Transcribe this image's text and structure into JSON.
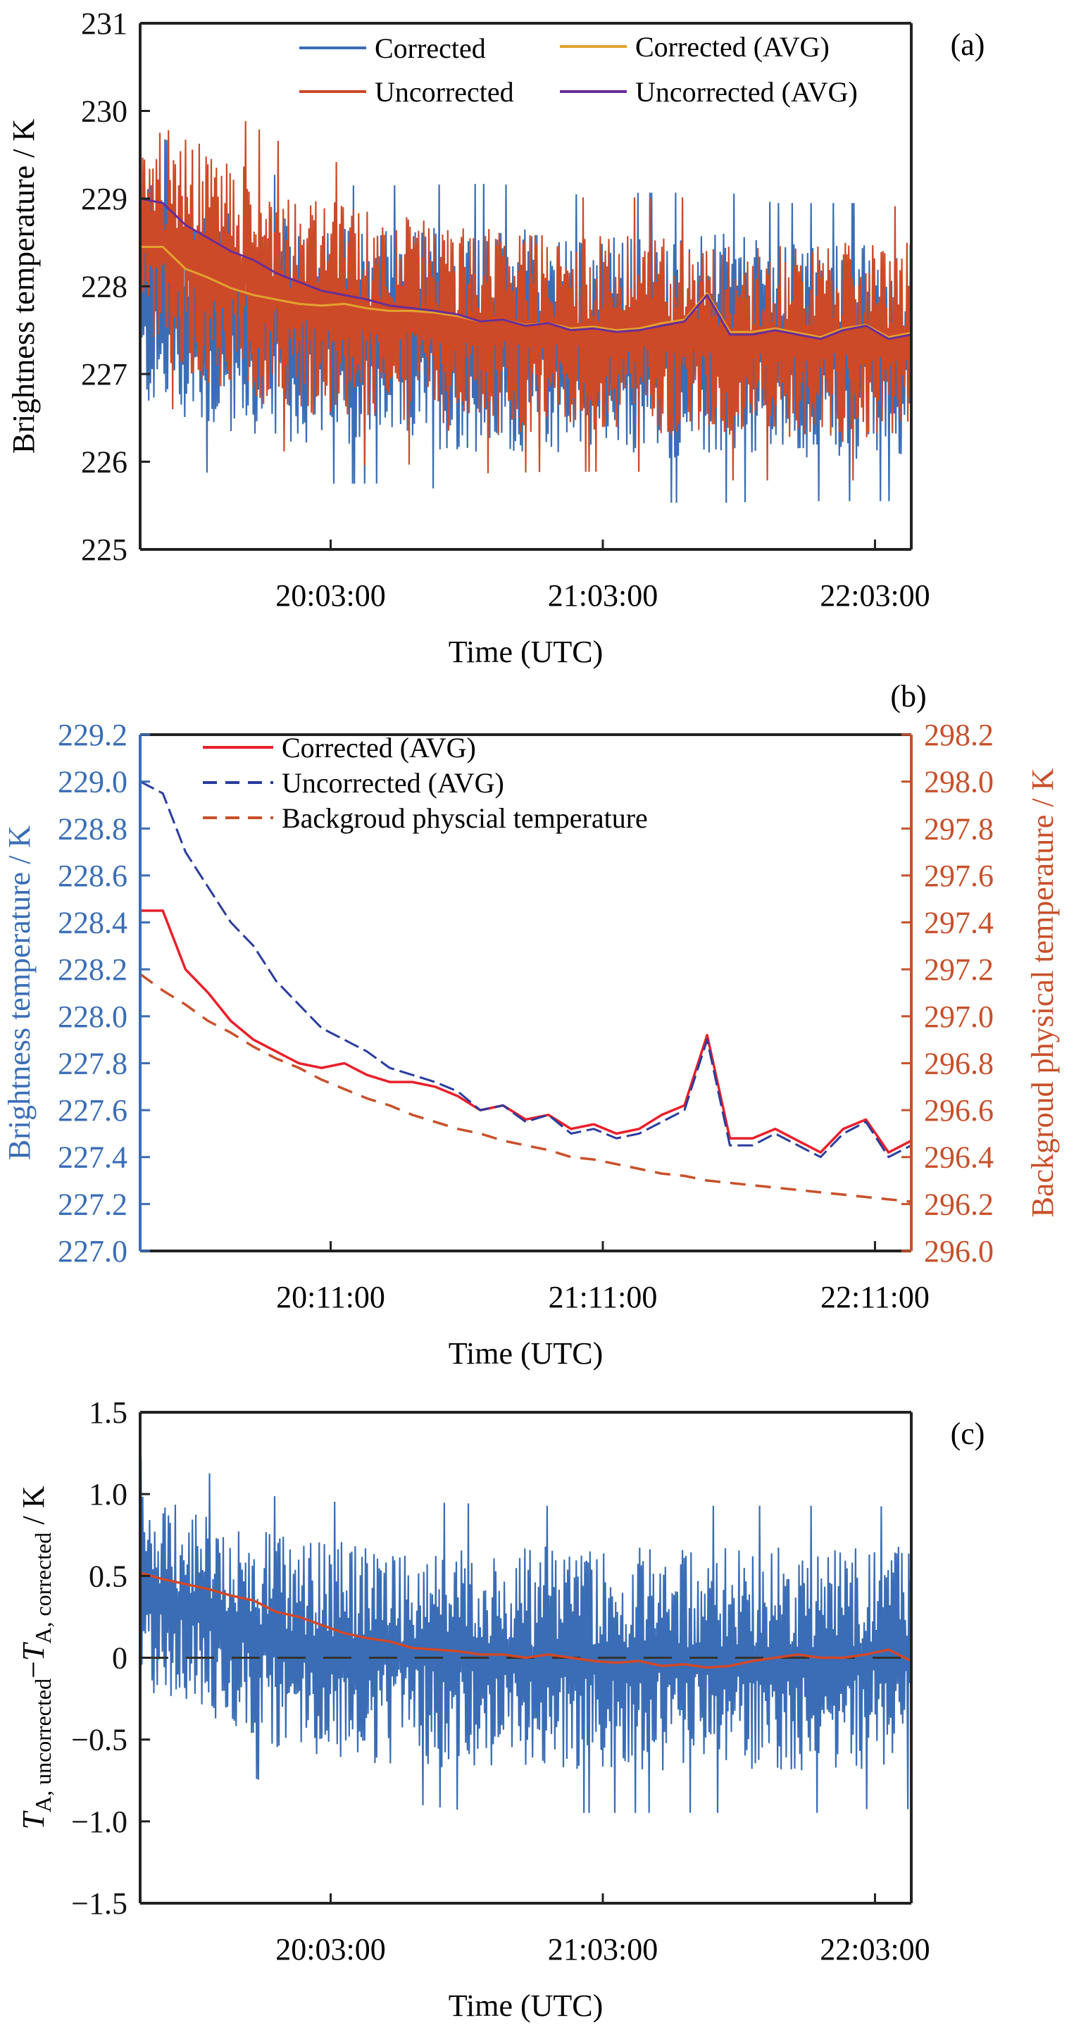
{
  "chart_data": [
    {
      "panel": "(a)",
      "type": "line",
      "xlabel": "Time (UTC)",
      "ylabel": "Brightness temperature / K",
      "xlim": [
        "19:21",
        "22:11"
      ],
      "ylim": [
        225,
        231
      ],
      "yticks": [
        "225",
        "226",
        "227",
        "228",
        "229",
        "230",
        "231"
      ],
      "xticks": [
        {
          "t": "20:03",
          "label": "20:03:00"
        },
        {
          "t": "21:03",
          "label": "21:03:00"
        },
        {
          "t": "22:03",
          "label": "22:03:00"
        }
      ],
      "legend": [
        "Corrected",
        "Uncorrected",
        "Corrected (AVG)",
        "Uncorrected (AVG)"
      ],
      "legend_placement": "top",
      "colors": {
        "Corrected": "#3a6db5",
        "Uncorrected": "#cc4a28",
        "Corrected (AVG)": "#e3a12f",
        "Uncorrected (AVG)": "#6b2d96"
      },
      "raw_series": {
        "times": [
          "19:21",
          "19:31",
          "19:41",
          "19:51",
          "20:01",
          "20:11",
          "20:21",
          "20:31",
          "20:41",
          "20:51",
          "21:01",
          "21:11",
          "21:21",
          "21:31",
          "21:41",
          "21:51",
          "22:01",
          "22:11"
        ],
        "Corrected": {
          "hi": [
            229.3,
            229.1,
            228.9,
            228.8,
            228.7,
            228.7,
            228.7,
            228.7,
            228.7,
            228.6,
            228.6,
            228.6,
            228.6,
            228.6,
            228.5,
            228.5,
            228.5,
            228.5
          ],
          "lo": [
            226.6,
            226.4,
            226.3,
            226.2,
            226.2,
            226.2,
            226.2,
            226.1,
            226.1,
            226.1,
            226.1,
            226.0,
            226.0,
            226.0,
            226.0,
            226.0,
            226.0,
            226.0
          ]
        },
        "Uncorrected": {
          "hi": [
            230.0,
            229.7,
            229.5,
            229.2,
            229.0,
            228.9,
            228.8,
            228.7,
            228.7,
            228.6,
            228.6,
            228.6,
            228.6,
            228.5,
            228.5,
            228.5,
            228.5,
            228.5
          ],
          "lo": [
            227.3,
            227.0,
            226.8,
            226.6,
            226.5,
            226.4,
            226.4,
            226.3,
            226.3,
            226.3,
            226.3,
            226.3,
            226.3,
            226.2,
            226.2,
            226.2,
            226.2,
            226.2
          ]
        }
      },
      "avg_series": {
        "times": [
          "19:21",
          "19:26",
          "19:31",
          "19:36",
          "19:41",
          "19:46",
          "19:51",
          "19:56",
          "20:01",
          "20:06",
          "20:11",
          "20:16",
          "20:21",
          "20:26",
          "20:31",
          "20:36",
          "20:41",
          "20:46",
          "20:51",
          "20:56",
          "21:01",
          "21:06",
          "21:11",
          "21:16",
          "21:21",
          "21:26",
          "21:31",
          "21:36",
          "21:41",
          "21:46",
          "21:51",
          "21:56",
          "22:01",
          "22:06",
          "22:11"
        ],
        "Corrected (AVG)": [
          228.45,
          228.45,
          228.2,
          228.1,
          227.98,
          227.9,
          227.85,
          227.8,
          227.78,
          227.8,
          227.75,
          227.72,
          227.72,
          227.7,
          227.66,
          227.6,
          227.62,
          227.56,
          227.58,
          227.52,
          227.54,
          227.5,
          227.52,
          227.58,
          227.62,
          227.92,
          227.48,
          227.48,
          227.52,
          227.47,
          227.42,
          227.52,
          227.56,
          227.42,
          227.47
        ],
        "Uncorrected (AVG)": [
          229.0,
          228.95,
          228.7,
          228.55,
          228.4,
          228.3,
          228.15,
          228.05,
          227.95,
          227.9,
          227.85,
          227.78,
          227.75,
          227.72,
          227.68,
          227.6,
          227.62,
          227.55,
          227.58,
          227.5,
          227.52,
          227.48,
          227.5,
          227.55,
          227.6,
          227.9,
          227.45,
          227.45,
          227.5,
          227.45,
          227.4,
          227.5,
          227.55,
          227.4,
          227.45
        ]
      }
    },
    {
      "panel": "(b)",
      "type": "line",
      "xlabel": "Time (UTC)",
      "ylabel": "Brightness temperature / K",
      "y2label": "Backgroud physical temperature / K",
      "xlim": [
        "19:29",
        "22:19"
      ],
      "ylim": [
        227.0,
        229.2
      ],
      "y2lim": [
        296.0,
        298.2
      ],
      "yticks": [
        "227.0",
        "227.2",
        "227.4",
        "227.6",
        "227.8",
        "228.0",
        "228.2",
        "228.4",
        "228.6",
        "228.8",
        "229.0",
        "229.2"
      ],
      "y2ticks": [
        "296.0",
        "296.2",
        "296.4",
        "296.6",
        "296.8",
        "297.0",
        "297.2",
        "297.4",
        "297.6",
        "297.8",
        "298.0",
        "298.2"
      ],
      "xticks": [
        {
          "t": "20:11",
          "label": "20:11:00"
        },
        {
          "t": "21:11",
          "label": "21:11:00"
        },
        {
          "t": "22:11",
          "label": "22:11:00"
        }
      ],
      "legend": [
        "Corrected (AVG)",
        "Uncorrected (AVG)",
        "Backgroud physcial temperature"
      ],
      "legend_placement": "top-left",
      "colors": {
        "left_axis": "#3a6db5",
        "right_axis": "#c8502a",
        "Corrected (AVG)": "#e8202a",
        "Uncorrected (AVG)": "#2a3c9e",
        "Backgroud physcial temperature": "#c8502a"
      },
      "times": [
        "19:29",
        "19:34",
        "19:39",
        "19:44",
        "19:49",
        "19:54",
        "19:59",
        "20:04",
        "20:09",
        "20:14",
        "20:19",
        "20:24",
        "20:29",
        "20:34",
        "20:39",
        "20:44",
        "20:49",
        "20:54",
        "20:59",
        "21:04",
        "21:09",
        "21:14",
        "21:19",
        "21:24",
        "21:29",
        "21:34",
        "21:39",
        "21:44",
        "21:49",
        "21:54",
        "21:59",
        "22:04",
        "22:09",
        "22:14",
        "22:19"
      ],
      "Corrected (AVG)": [
        228.45,
        228.45,
        228.2,
        228.1,
        227.98,
        227.9,
        227.85,
        227.8,
        227.78,
        227.8,
        227.75,
        227.72,
        227.72,
        227.7,
        227.66,
        227.6,
        227.62,
        227.56,
        227.58,
        227.52,
        227.54,
        227.5,
        227.52,
        227.58,
        227.62,
        227.92,
        227.48,
        227.48,
        227.52,
        227.47,
        227.42,
        227.52,
        227.56,
        227.42,
        227.47
      ],
      "Uncorrected (AVG)": [
        229.0,
        228.95,
        228.7,
        228.55,
        228.4,
        228.3,
        228.15,
        228.05,
        227.95,
        227.9,
        227.85,
        227.78,
        227.75,
        227.72,
        227.68,
        227.6,
        227.62,
        227.55,
        227.58,
        227.5,
        227.52,
        227.48,
        227.5,
        227.55,
        227.6,
        227.9,
        227.45,
        227.45,
        227.5,
        227.45,
        227.4,
        227.5,
        227.55,
        227.4,
        227.45
      ],
      "Backgroud physcial temperature": [
        297.18,
        297.11,
        297.05,
        296.98,
        296.93,
        296.87,
        296.82,
        296.78,
        296.73,
        296.69,
        296.65,
        296.62,
        296.58,
        296.55,
        296.52,
        296.5,
        296.47,
        296.45,
        296.43,
        296.4,
        296.39,
        296.37,
        296.35,
        296.33,
        296.32,
        296.3,
        296.29,
        296.28,
        296.27,
        296.26,
        296.25,
        296.24,
        296.23,
        296.22,
        296.21
      ]
    },
    {
      "panel": "(c)",
      "type": "line",
      "xlabel": "Time (UTC)",
      "ylabel_parts": [
        "T",
        "A, uncorrected",
        "−",
        "T",
        "A, corrected",
        " / K"
      ],
      "xlim": [
        "19:21",
        "22:11"
      ],
      "ylim": [
        -1.5,
        1.5
      ],
      "yticks": [
        "−1.5",
        "−1.0",
        "−0.5",
        "0",
        "0.5",
        "1.0",
        "1.5"
      ],
      "xticks": [
        {
          "t": "20:03",
          "label": "20:03:00"
        },
        {
          "t": "21:03",
          "label": "21:03:00"
        },
        {
          "t": "22:03",
          "label": "22:03:00"
        }
      ],
      "reference_line": 0,
      "colors": {
        "difference": "#3a6db5",
        "difference_avg": "#d0482a",
        "reference": "#333333"
      },
      "raw_series": {
        "times": [
          "19:21",
          "19:31",
          "19:41",
          "19:51",
          "20:01",
          "20:11",
          "20:21",
          "20:31",
          "20:41",
          "20:51",
          "21:01",
          "21:11",
          "21:21",
          "21:31",
          "21:41",
          "21:51",
          "22:01",
          "22:11"
        ],
        "hi": [
          1.0,
          0.95,
          0.85,
          0.75,
          0.72,
          0.7,
          0.7,
          0.7,
          0.68,
          0.68,
          0.68,
          0.68,
          0.68,
          0.68,
          0.68,
          0.68,
          0.68,
          0.68
        ],
        "lo": [
          -0.2,
          -0.3,
          -0.45,
          -0.55,
          -0.6,
          -0.65,
          -0.65,
          -0.68,
          -0.68,
          -0.7,
          -0.7,
          -0.7,
          -0.7,
          -0.7,
          -0.7,
          -0.7,
          -0.68,
          -0.68
        ]
      },
      "avg_series": {
        "times": [
          "19:21",
          "19:26",
          "19:31",
          "19:36",
          "19:41",
          "19:46",
          "19:51",
          "19:56",
          "20:01",
          "20:06",
          "20:11",
          "20:16",
          "20:21",
          "20:26",
          "20:31",
          "20:36",
          "20:41",
          "20:46",
          "20:51",
          "20:56",
          "21:01",
          "21:06",
          "21:11",
          "21:16",
          "21:21",
          "21:26",
          "21:31",
          "21:36",
          "21:41",
          "21:46",
          "21:51",
          "21:56",
          "22:01",
          "22:06",
          "22:11"
        ],
        "values": [
          0.52,
          0.48,
          0.45,
          0.42,
          0.38,
          0.35,
          0.28,
          0.25,
          0.2,
          0.15,
          0.12,
          0.1,
          0.06,
          0.05,
          0.04,
          0.02,
          0.02,
          0.0,
          0.02,
          0.0,
          -0.02,
          -0.03,
          -0.02,
          -0.05,
          -0.04,
          -0.06,
          -0.05,
          -0.02,
          0.0,
          0.02,
          0.0,
          0.0,
          0.02,
          0.05,
          -0.02
        ]
      }
    }
  ]
}
